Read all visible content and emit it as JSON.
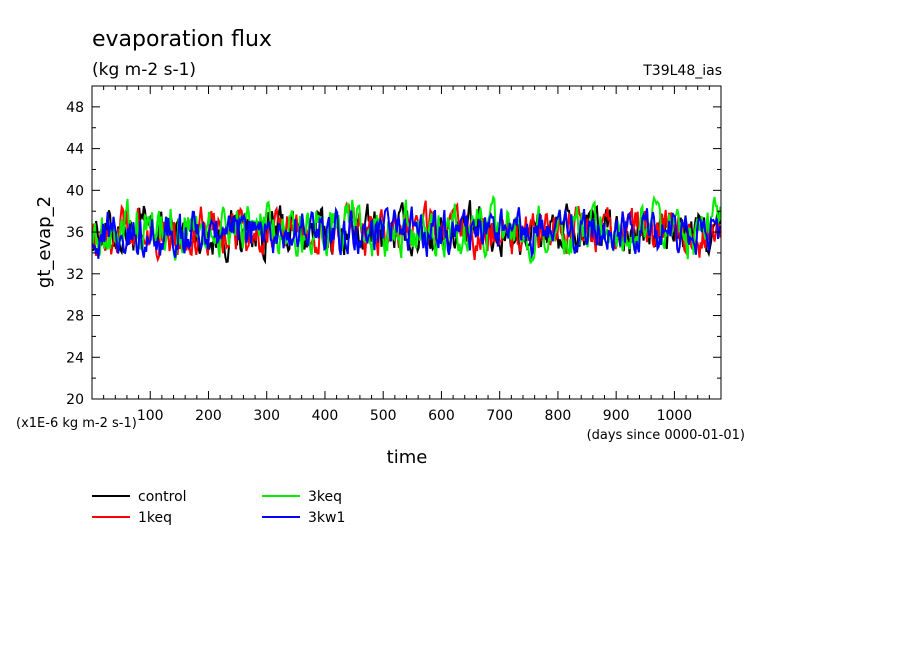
{
  "chart_data": {
    "type": "line",
    "title": "evaporation flux",
    "subtitle": "(kg m-2 s-1)",
    "run_label": "T39L48_ias",
    "ylabel": "gt_evap_2",
    "xlabel": "time",
    "y_units": "(x1E-6 kg m-2 s-1)",
    "x_units": "(days since 0000-01-01)",
    "xlim": [
      0,
      1080
    ],
    "ylim": [
      20,
      50
    ],
    "x_ticks": [
      100,
      200,
      300,
      400,
      500,
      600,
      700,
      800,
      900,
      1000
    ],
    "x_tick_labels": [
      "100",
      "200",
      "300",
      "400",
      "500",
      "600",
      "700",
      "800",
      "900",
      "1000"
    ],
    "y_ticks": [
      20,
      24,
      28,
      32,
      36,
      40,
      44,
      48
    ],
    "y_tick_labels": [
      "20",
      "24",
      "28",
      "32",
      "36",
      "40",
      "44",
      "48"
    ],
    "grid": false,
    "legend_placement": "bottom-left",
    "series": [
      {
        "name": "control",
        "color": "#000000",
        "mean": 36,
        "amplitude": 2.6
      },
      {
        "name": "1keq",
        "color": "#ff0000",
        "mean": 36,
        "amplitude": 2.5
      },
      {
        "name": "3keq",
        "color": "#00ee00",
        "mean": 36.3,
        "amplitude": 2.7
      },
      {
        "name": "3kw1",
        "color": "#0000ff",
        "mean": 35.9,
        "amplitude": 2.4
      }
    ]
  }
}
